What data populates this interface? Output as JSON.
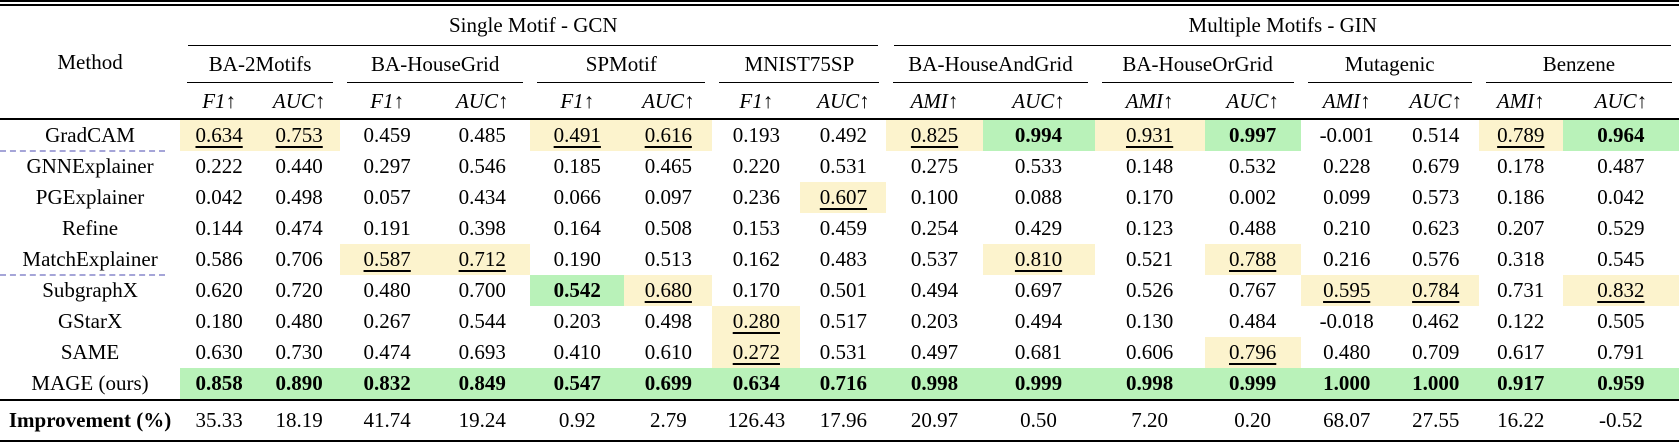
{
  "table": {
    "method_header": "Method",
    "arrow": "↑",
    "groups": [
      {
        "label": "Single Motif - GCN",
        "span": 8
      },
      {
        "label": "Multiple Motifs - GIN",
        "span": 8
      }
    ],
    "datasets": [
      {
        "name": "BA-2Motifs",
        "metrics": [
          "F1",
          "AUC"
        ]
      },
      {
        "name": "BA-HouseGrid",
        "metrics": [
          "F1",
          "AUC"
        ]
      },
      {
        "name": "SPMotif",
        "metrics": [
          "F1",
          "AUC"
        ]
      },
      {
        "name": "MNIST75SP",
        "metrics": [
          "F1",
          "AUC"
        ]
      },
      {
        "name": "BA-HouseAndGrid",
        "metrics": [
          "AMI",
          "AUC"
        ]
      },
      {
        "name": "BA-HouseOrGrid",
        "metrics": [
          "AMI",
          "AUC"
        ]
      },
      {
        "name": "Mutagenic",
        "metrics": [
          "AMI",
          "AUC"
        ]
      },
      {
        "name": "Benzene",
        "metrics": [
          "AMI",
          "AUC"
        ]
      }
    ],
    "rows": [
      {
        "method": "GradCAM",
        "dashed_below": true,
        "values": [
          "0.634",
          "0.753",
          "0.459",
          "0.485",
          "0.491",
          "0.616",
          "0.193",
          "0.492",
          "0.825",
          "0.994",
          "0.931",
          "0.997",
          "-0.001",
          "0.514",
          "0.789",
          "0.964"
        ],
        "marks": [
          "y",
          "y",
          "",
          "",
          "y",
          "y",
          "",
          "",
          "y",
          "g",
          "y",
          "g",
          "",
          "",
          "y",
          "g"
        ]
      },
      {
        "method": "GNNExplainer",
        "dashed_below": false,
        "values": [
          "0.222",
          "0.440",
          "0.297",
          "0.546",
          "0.185",
          "0.465",
          "0.220",
          "0.531",
          "0.275",
          "0.533",
          "0.148",
          "0.532",
          "0.228",
          "0.679",
          "0.178",
          "0.487"
        ],
        "marks": [
          "",
          "",
          "",
          "",
          "",
          "",
          "",
          "",
          "",
          "",
          "",
          "",
          "",
          "",
          "",
          ""
        ]
      },
      {
        "method": "PGExplainer",
        "dashed_below": false,
        "values": [
          "0.042",
          "0.498",
          "0.057",
          "0.434",
          "0.066",
          "0.097",
          "0.236",
          "0.607",
          "0.100",
          "0.088",
          "0.170",
          "0.002",
          "0.099",
          "0.573",
          "0.186",
          "0.042"
        ],
        "marks": [
          "",
          "",
          "",
          "",
          "",
          "",
          "",
          "y",
          "",
          "",
          "",
          "",
          "",
          "",
          "",
          ""
        ]
      },
      {
        "method": "Refine",
        "dashed_below": false,
        "values": [
          "0.144",
          "0.474",
          "0.191",
          "0.398",
          "0.164",
          "0.508",
          "0.153",
          "0.459",
          "0.254",
          "0.429",
          "0.123",
          "0.488",
          "0.210",
          "0.623",
          "0.207",
          "0.529"
        ],
        "marks": [
          "",
          "",
          "",
          "",
          "",
          "",
          "",
          "",
          "",
          "",
          "",
          "",
          "",
          "",
          "",
          ""
        ]
      },
      {
        "method": "MatchExplainer",
        "dashed_below": true,
        "values": [
          "0.586",
          "0.706",
          "0.587",
          "0.712",
          "0.190",
          "0.513",
          "0.162",
          "0.483",
          "0.537",
          "0.810",
          "0.521",
          "0.788",
          "0.216",
          "0.576",
          "0.318",
          "0.545"
        ],
        "marks": [
          "",
          "",
          "y",
          "y",
          "",
          "",
          "",
          "",
          "",
          "y",
          "",
          "y",
          "",
          "",
          "",
          ""
        ]
      },
      {
        "method": "SubgraphX",
        "dashed_below": false,
        "values": [
          "0.620",
          "0.720",
          "0.480",
          "0.700",
          "0.542",
          "0.680",
          "0.170",
          "0.501",
          "0.494",
          "0.697",
          "0.526",
          "0.767",
          "0.595",
          "0.784",
          "0.731",
          "0.832"
        ],
        "marks": [
          "",
          "",
          "",
          "",
          "g",
          "y",
          "",
          "",
          "",
          "",
          "",
          "",
          "y",
          "y",
          "",
          "y"
        ]
      },
      {
        "method": "GStarX",
        "dashed_below": false,
        "values": [
          "0.180",
          "0.480",
          "0.267",
          "0.544",
          "0.203",
          "0.498",
          "0.280",
          "0.517",
          "0.203",
          "0.494",
          "0.130",
          "0.484",
          "-0.018",
          "0.462",
          "0.122",
          "0.505"
        ],
        "marks": [
          "",
          "",
          "",
          "",
          "",
          "",
          "y",
          "",
          "",
          "",
          "",
          "",
          "",
          "",
          "",
          ""
        ]
      },
      {
        "method": "SAME",
        "dashed_below": false,
        "values": [
          "0.630",
          "0.730",
          "0.474",
          "0.693",
          "0.410",
          "0.610",
          "0.272",
          "0.531",
          "0.497",
          "0.681",
          "0.606",
          "0.796",
          "0.480",
          "0.709",
          "0.617",
          "0.791"
        ],
        "marks": [
          "",
          "",
          "",
          "",
          "",
          "",
          "y",
          "",
          "",
          "",
          "",
          "y",
          "",
          "",
          "",
          ""
        ]
      },
      {
        "method": "MAGE (ours)",
        "dashed_below": false,
        "values": [
          "0.858",
          "0.890",
          "0.832",
          "0.849",
          "0.547",
          "0.699",
          "0.634",
          "0.716",
          "0.998",
          "0.999",
          "0.998",
          "0.999",
          "1.000",
          "1.000",
          "0.917",
          "0.959"
        ],
        "marks": [
          "g",
          "g",
          "g",
          "g",
          "g",
          "g",
          "g",
          "g",
          "g",
          "g",
          "g",
          "g",
          "g",
          "g",
          "g",
          "g"
        ]
      }
    ],
    "improvement": {
      "label": "Improvement (%)",
      "values": [
        "35.33",
        "18.19",
        "41.74",
        "19.24",
        "0.92",
        "2.79",
        "126.43",
        "17.96",
        "20.97",
        "0.50",
        "7.20",
        "0.20",
        "68.07",
        "27.55",
        "16.22",
        "-0.52"
      ]
    },
    "legend_colors": {
      "best_bg": "#b9f2b9",
      "second_best_bg": "#fcf3cd",
      "group_divider_dash": "#a5a5d8"
    }
  }
}
